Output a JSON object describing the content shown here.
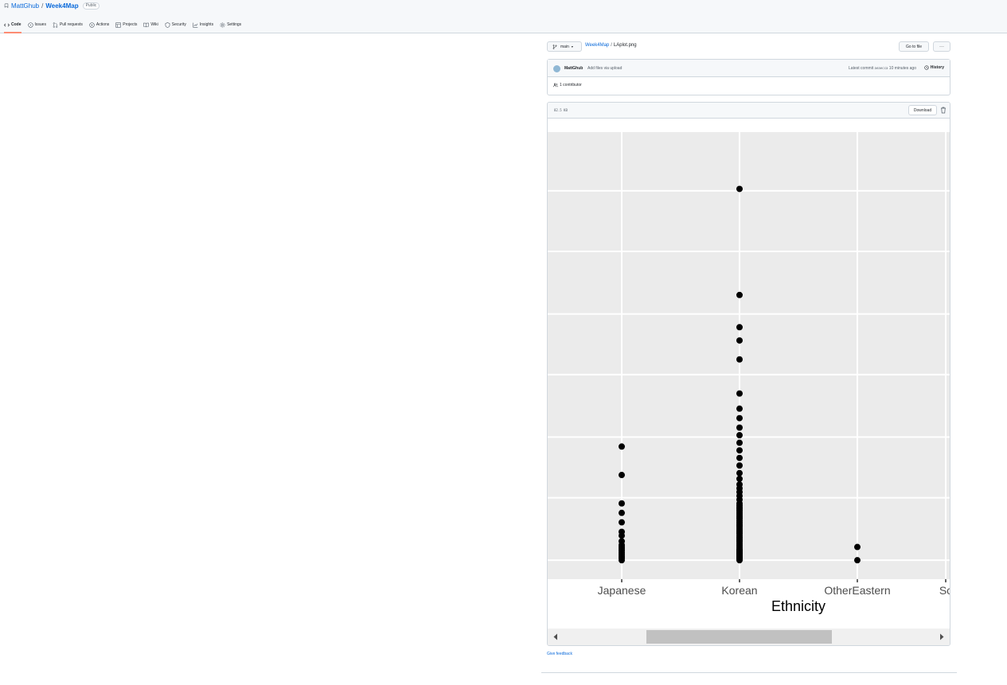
{
  "repo": {
    "owner": "MattGhub",
    "separator": "/",
    "name": "Week4Map",
    "visibility": "Public"
  },
  "tabs": [
    {
      "label": "Code",
      "icon": "code-icon",
      "active": true
    },
    {
      "label": "Issues",
      "icon": "issue-icon"
    },
    {
      "label": "Pull requests",
      "icon": "pull-request-icon"
    },
    {
      "label": "Actions",
      "icon": "play-icon"
    },
    {
      "label": "Projects",
      "icon": "table-icon"
    },
    {
      "label": "Wiki",
      "icon": "book-icon"
    },
    {
      "label": "Security",
      "icon": "shield-icon"
    },
    {
      "label": "Insights",
      "icon": "graph-icon"
    },
    {
      "label": "Settings",
      "icon": "gear-icon"
    }
  ],
  "file_nav": {
    "branch": "main",
    "repo_link": "Week4Map",
    "slash": "/",
    "file_name": "LAplot.png",
    "go_to_file": "Go to file",
    "more": "···"
  },
  "commit": {
    "author": "MattGhub",
    "message": "Add files via upload",
    "latest_label": "Latest commit",
    "sha": "aeaecca",
    "time": "10 minutes ago",
    "history": "History",
    "contributors": "1 contributor"
  },
  "file": {
    "size": "82.5 KB",
    "download": "Download"
  },
  "chart_data": {
    "type": "scatter",
    "xlabel": "Ethnicity",
    "categories": [
      "Japanese",
      "Korean",
      "OtherEastern",
      "Sc"
    ],
    "point_color": "#000000",
    "panel_color": "#ebebeb",
    "grid": true,
    "series": [
      {
        "category": "Japanese",
        "values": [
          0.0,
          0.1,
          0.2,
          0.3,
          0.4,
          0.5,
          0.6,
          0.7,
          0.8,
          1.0,
          1.3,
          1.5,
          2.0,
          2.5,
          3.0,
          4.5,
          6.0
        ]
      },
      {
        "category": "Korean",
        "values": [
          0.0,
          0.05,
          0.1,
          0.15,
          0.2,
          0.25,
          0.3,
          0.35,
          0.4,
          0.45,
          0.5,
          0.55,
          0.6,
          0.7,
          0.8,
          0.9,
          1.0,
          1.1,
          1.2,
          1.3,
          1.4,
          1.5,
          1.6,
          1.7,
          1.8,
          1.9,
          2.0,
          2.1,
          2.2,
          2.3,
          2.4,
          2.5,
          2.6,
          2.7,
          2.8,
          2.9,
          3.0,
          3.2,
          3.4,
          3.6,
          3.8,
          4.0,
          4.3,
          4.6,
          5.0,
          5.4,
          5.8,
          6.2,
          6.6,
          7.0,
          7.5,
          8.0,
          8.8,
          10.6,
          11.6,
          12.3,
          14.0,
          19.6
        ]
      },
      {
        "category": "OtherEastern",
        "values": [
          0.0,
          0.7
        ]
      }
    ],
    "ylim": [
      -1.0,
      22.6
    ],
    "y_gridlines": [
      0,
      3.3,
      6.5,
      9.8,
      13.0,
      16.3,
      19.5
    ]
  },
  "feedback": "Give feedback"
}
